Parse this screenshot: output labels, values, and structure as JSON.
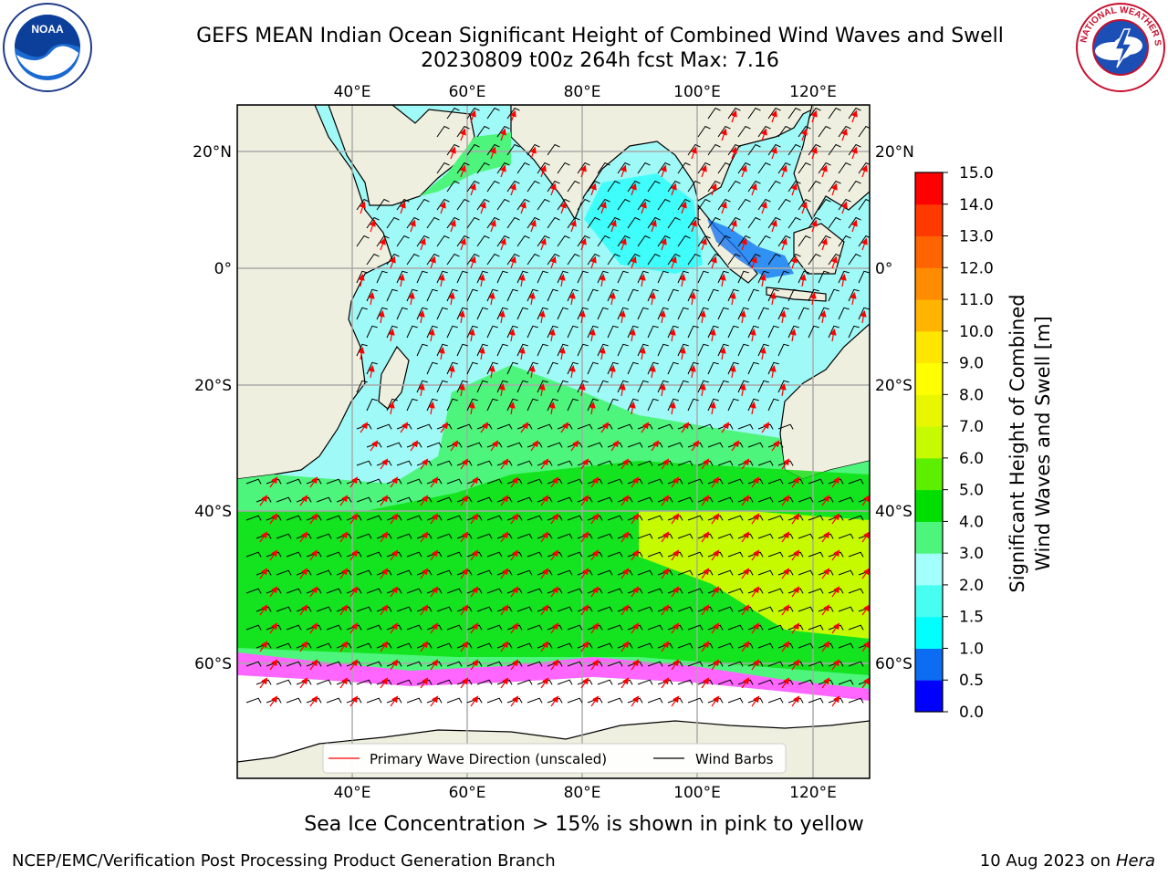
{
  "title": {
    "line1": "GEFS MEAN Indian Ocean Significant Height of Combined Wind Waves and Swell",
    "line2": "20230809 t00z 264h fcst   Max: 7.16"
  },
  "logos": {
    "left": "noaa-logo",
    "right": "nws-logo"
  },
  "map": {
    "lon_ticks": [
      "40°E",
      "60°E",
      "80°E",
      "100°E",
      "120°E"
    ],
    "lat_ticks": [
      "20°N",
      "0°",
      "20°S",
      "40°S",
      "60°S"
    ],
    "legend": {
      "wave_direction": "Primary Wave Direction (unscaled)",
      "wind_barbs": "Wind Barbs"
    },
    "colors": {
      "land": "#efefdf",
      "ocean_low": "#9ff9f6",
      "ocean_mid": "#4df57c",
      "ocean_high": "#00dd00",
      "yellowgreen": "#c6fa00",
      "ice": "#ff66ff"
    }
  },
  "colorbar": {
    "label_line1": "Significant Height of Combined",
    "label_line2": "Wind Waves and Swell [m]",
    "ticks": [
      "0.0",
      "0.5",
      "1.0",
      "1.5",
      "2.0",
      "3.0",
      "4.0",
      "5.0",
      "6.0",
      "7.0",
      "8.0",
      "9.0",
      "10.0",
      "11.0",
      "12.0",
      "13.0",
      "14.0",
      "15.0"
    ],
    "colors": [
      "#0000ff",
      "#0c6cf2",
      "#00ffff",
      "#46fff0",
      "#a2fffb",
      "#4df57c",
      "#00dd00",
      "#5cef00",
      "#c6fa00",
      "#e8f600",
      "#ffff00",
      "#ffe600",
      "#ffb400",
      "#ff8c00",
      "#ff6400",
      "#ff3a00",
      "#ff0000"
    ]
  },
  "caption": "Sea Ice Concentration > 15% is shown in pink to yellow",
  "footer": {
    "left": "NCEP/EMC/Verification Post Processing Product Generation Branch",
    "right_date": "10 Aug 2023 on",
    "right_host": "Hera"
  }
}
